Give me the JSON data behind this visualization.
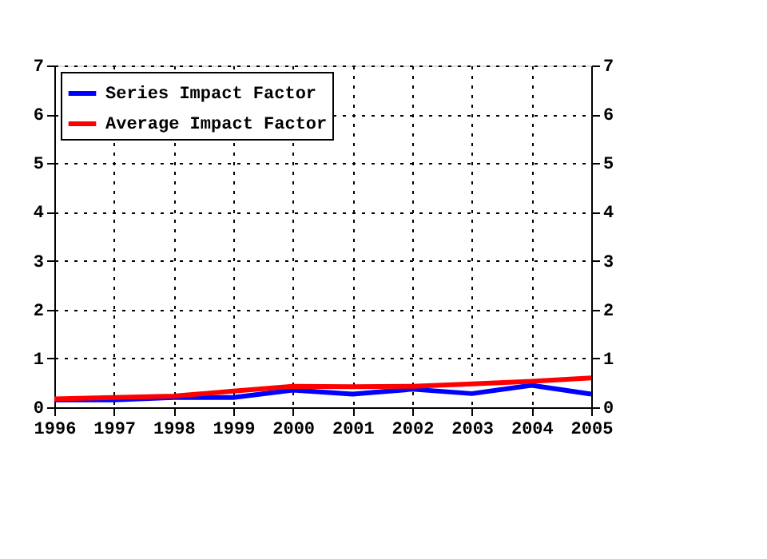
{
  "chart_data": {
    "type": "line",
    "x": [
      1996,
      1997,
      1998,
      1999,
      2000,
      2001,
      2002,
      2003,
      2004,
      2005
    ],
    "series": [
      {
        "name": "Series Impact Factor",
        "color": "#0000ff",
        "values": [
          0.15,
          0.15,
          0.2,
          0.2,
          0.35,
          0.27,
          0.37,
          0.28,
          0.45,
          0.27
        ]
      },
      {
        "name": "Average Impact Factor",
        "color": "#ff0000",
        "values": [
          0.17,
          0.2,
          0.23,
          0.33,
          0.43,
          0.42,
          0.43,
          0.48,
          0.53,
          0.6
        ]
      }
    ],
    "xlim": [
      1996,
      2005
    ],
    "xticks": [
      1996,
      1997,
      1998,
      1999,
      2000,
      2001,
      2002,
      2003,
      2004,
      2005
    ],
    "ylim": [
      0,
      7
    ],
    "yticks": [
      0,
      1,
      2,
      3,
      4,
      5,
      6,
      7
    ],
    "y2lim": [
      0,
      7
    ],
    "y2ticks": [
      0,
      1,
      2,
      3,
      4,
      5,
      6,
      7
    ],
    "grid": true,
    "legend": "top left",
    "marker": "none",
    "line_style": "solid"
  }
}
